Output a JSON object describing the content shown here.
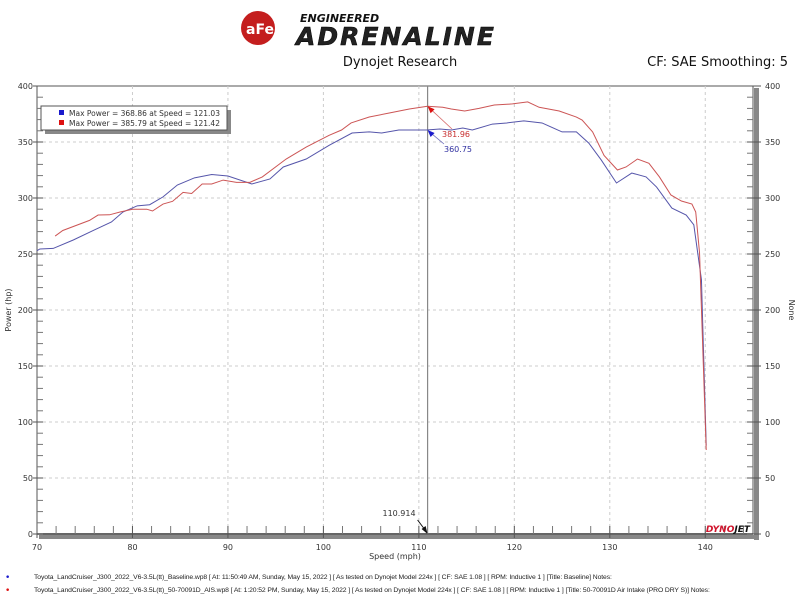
{
  "header": {
    "logo_text_small": "aFe POWER",
    "logo_text_top": "ENGINEERED",
    "logo_text_main": "ADRENALINE",
    "subtitle": "Dynojet Research",
    "cf_text": "CF: SAE Smoothing: 5"
  },
  "chart_data": {
    "type": "line",
    "xlabel": "Speed (mph)",
    "ylabel": "Power (hp)",
    "y2label": "None",
    "xlim": [
      70,
      145
    ],
    "ylim": [
      0,
      400
    ],
    "xticks": [
      70,
      80,
      90,
      100,
      110,
      120,
      130,
      140
    ],
    "yticks": [
      0,
      50,
      100,
      150,
      200,
      250,
      300,
      350,
      400
    ],
    "grid": true,
    "legend_position": "top-left",
    "legend": [
      {
        "label": "Max Power = 368.86 at Speed = 121.03",
        "color": "#1a1acc"
      },
      {
        "label": "Max Power = 385.79 at Speed = 121.42",
        "color": "#dd1111"
      }
    ],
    "cursor": {
      "x": 110.914,
      "label": "110.914"
    },
    "annotations": [
      {
        "label": "381.96",
        "color": "#c83030"
      },
      {
        "label": "360.75",
        "color": "#3030a0"
      }
    ],
    "series": [
      {
        "color": "#5555aa",
        "x": [
          70,
          70.3,
          71.7,
          73.8,
          75.9,
          77.8,
          79,
          80.5,
          81.8,
          83.2,
          84.7,
          86.5,
          88.3,
          90,
          92.5,
          94.4,
          95.8,
          98.2,
          100.6,
          103,
          104.8,
          106.1,
          107.9,
          110.8,
          112.2,
          113.4,
          114.6,
          115.6,
          117.7,
          119.2,
          121,
          122.9,
          125,
          126.5,
          127.8,
          129.1,
          130.7,
          132.3,
          133.8,
          134.9,
          136.5,
          138,
          138.8,
          139.6,
          140.1
        ],
        "y": [
          253,
          254.5,
          255,
          262.5,
          271,
          278.6,
          287.5,
          293,
          294,
          301,
          311.6,
          318,
          321,
          319.6,
          312.5,
          317,
          327.7,
          334.8,
          347,
          358,
          359,
          358,
          360.7,
          360.7,
          361.6,
          360.7,
          362.5,
          360.7,
          366,
          367,
          368.9,
          367,
          359,
          359,
          349,
          334,
          313.4,
          322.3,
          318.8,
          309.8,
          291,
          284.8,
          276,
          227,
          79
        ]
      },
      {
        "color": "#cc5555",
        "x": [
          71.9,
          72.7,
          75.5,
          76.4,
          77.6,
          78.7,
          80,
          81.5,
          82.1,
          83.2,
          84.2,
          85.3,
          86.2,
          87.3,
          88.3,
          89.5,
          90.9,
          92.3,
          93.6,
          96.1,
          98.2,
          100.6,
          101.9,
          102.9,
          104.8,
          106.9,
          109,
          110.9,
          112.5,
          113.4,
          114.8,
          116.3,
          117.9,
          119.8,
          121.4,
          122.6,
          124.7,
          126.5,
          127.1,
          128.2,
          129.4,
          130.8,
          131.7,
          132.9,
          134.1,
          135.2,
          136.4,
          137.5,
          138.6,
          139,
          139.4,
          140.1
        ],
        "y": [
          266,
          271,
          280,
          284.8,
          285,
          287.5,
          290,
          290,
          288.4,
          294.6,
          297,
          305,
          304,
          312.5,
          312.5,
          316,
          314,
          314,
          318.8,
          334.8,
          345.5,
          356,
          360.7,
          367,
          372.3,
          375.9,
          379.5,
          381.9,
          381,
          379.5,
          377.7,
          380,
          383,
          384,
          385.8,
          381,
          377.7,
          372.3,
          369.6,
          359,
          338,
          325,
          327.7,
          334.8,
          331,
          318.8,
          302.7,
          297.3,
          294.6,
          287.5,
          251,
          75
        ]
      }
    ]
  },
  "watermark": "DYNOJET",
  "footer": [
    {
      "text": "Toyota_LandCruiser_J300_2022_V6-3.5L(tt)_Baseline.wp8 [ At: 11:50:49 AM, Sunday, May 15, 2022 ] [ As tested on Dynojet Model 224x ] [ CF: SAE 1.08 ] [ RPM: Inductive 1 ] [Title: Baseline]  Notes:",
      "color": "#1a1acc"
    },
    {
      "text": "Toyota_LandCruiser_J300_2022_V6-3.5L(tt)_50-70091D_AIS.wp8 [ At: 1:20:52 PM, Sunday, May 15, 2022 ] [ As tested on Dynojet Model 224x ] [ CF: SAE 1.08 ] [ RPM: Inductive 1 ] [Title: 50-70091D Air Intake (PRO DRY S)]  Notes:",
      "color": "#dd1111"
    }
  ]
}
